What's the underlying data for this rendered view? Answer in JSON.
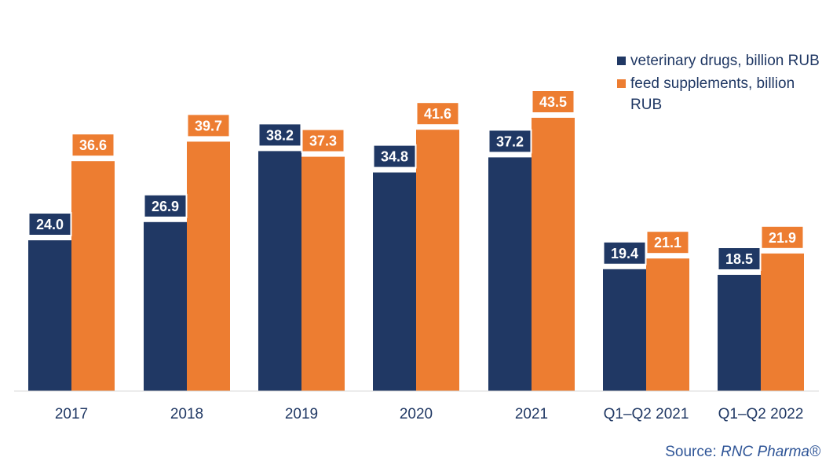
{
  "chart_data": {
    "type": "bar",
    "categories": [
      "2017",
      "2018",
      "2019",
      "2020",
      "2021",
      "Q1–Q2 2021",
      "Q1–Q2 2022"
    ],
    "series": [
      {
        "name": "veterinary drugs, billion RUB",
        "values": [
          24.0,
          26.9,
          38.2,
          34.8,
          37.2,
          19.4,
          18.5
        ],
        "color": "#203864"
      },
      {
        "name": "feed supplements, billion RUB",
        "values": [
          36.6,
          39.7,
          37.3,
          41.6,
          43.5,
          21.1,
          21.9
        ],
        "color": "#ed7d31"
      }
    ],
    "data_labels": [
      [
        "24.0",
        "26.9",
        "38.2",
        "34.8",
        "37.2",
        "19.4",
        "18.5"
      ],
      [
        "36.6",
        "39.7",
        "37.3",
        "41.6",
        "43.5",
        "21.1",
        "21.9"
      ]
    ],
    "title": "",
    "xlabel": "",
    "ylabel": "",
    "ylim": [
      0,
      50
    ],
    "grid": false,
    "legend_position": "top-right"
  },
  "source": {
    "prefix": "Source: ",
    "name": "RNC Pharma®"
  }
}
